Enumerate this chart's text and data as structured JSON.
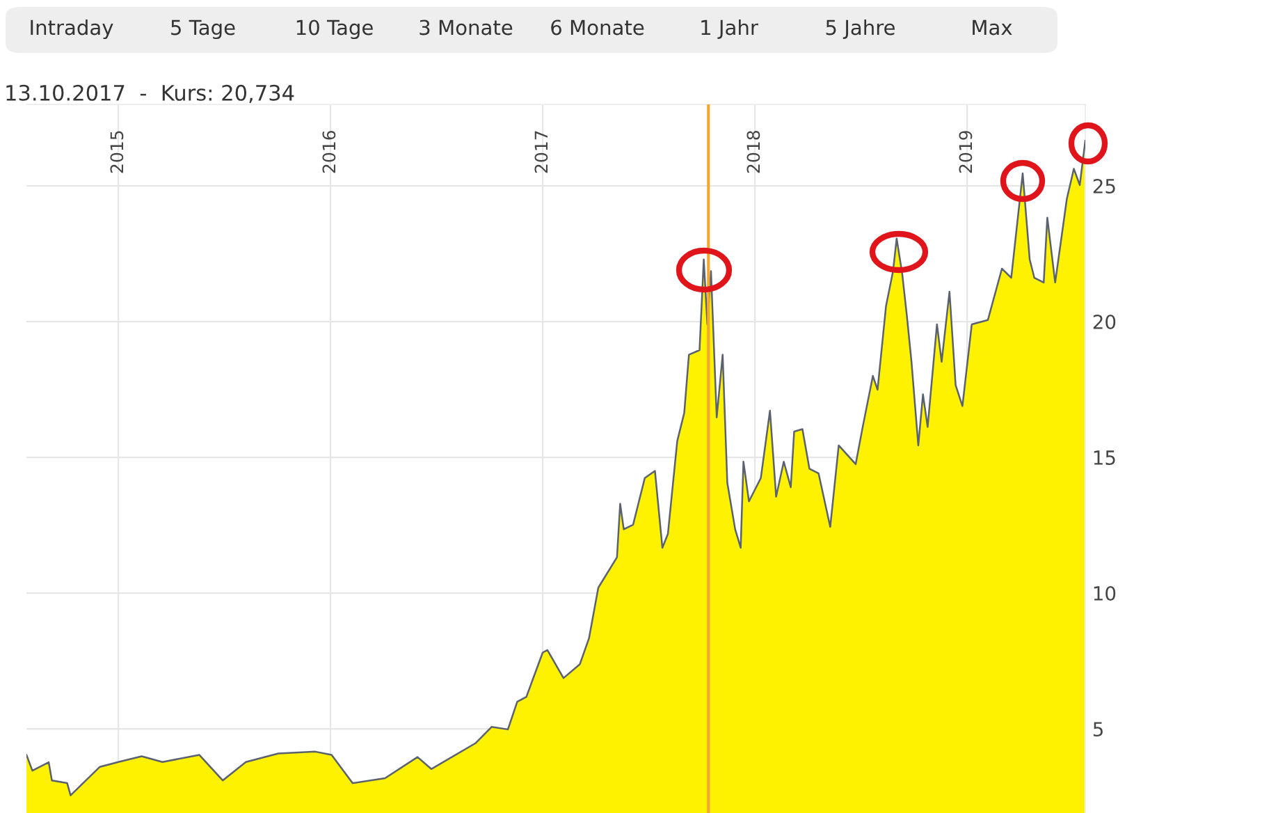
{
  "chart_data": {
    "type": "area",
    "annotations": [
      "13.10.2017  -  Kurs: 20,734",
      "Intraday",
      "5 Tage",
      "10 Tage",
      "3 Monate",
      "6 Monate",
      "1 Jahr",
      "5 Jahre",
      "Max"
    ],
    "ref_lines": [
      {
        "axis": "x",
        "value": 2017.781,
        "color": "#f0a830"
      }
    ],
    "series": [
      {
        "color": "#fff200",
        "x": [
          2014.567,
          2014.595,
          2014.672,
          2014.687,
          2014.759,
          2014.775,
          2014.913,
          2015.0,
          2015.11,
          2015.208,
          2015.382,
          2015.492,
          2015.601,
          2015.754,
          2015.929,
          2016.005,
          2016.104,
          2016.257,
          2016.41,
          2016.475,
          2016.683,
          2016.759,
          2016.836,
          2016.88,
          2016.923,
          2017.0,
          2017.022,
          2017.098,
          2017.175,
          2017.218,
          2017.262,
          2017.35,
          2017.365,
          2017.382,
          2017.426,
          2017.481,
          2017.529,
          2017.564,
          2017.59,
          2017.634,
          2017.667,
          2017.689,
          2017.739,
          2017.759,
          2017.776,
          2017.793,
          2017.82,
          2017.848,
          2017.87,
          2017.907,
          2017.933,
          2017.946,
          2017.972,
          2018.028,
          2018.071,
          2018.1,
          2018.136,
          2018.169,
          2018.185,
          2018.224,
          2018.257,
          2018.3,
          2018.355,
          2018.395,
          2018.475,
          2018.508,
          2018.556,
          2018.578,
          2018.618,
          2018.651,
          2018.668,
          2018.694,
          2018.716,
          2018.738,
          2018.77,
          2018.792,
          2018.814,
          2018.858,
          2018.88,
          2018.917,
          2018.946,
          2018.978,
          2019.022,
          2019.098,
          2019.164,
          2019.208,
          2019.262,
          2019.295,
          2019.317,
          2019.361,
          2019.378,
          2019.415,
          2019.47,
          2019.503,
          2019.531,
          2019.557
        ],
        "values": [
          4.04,
          3.46,
          3.77,
          3.1,
          3.0,
          2.55,
          3.6,
          3.78,
          3.99,
          3.78,
          4.04,
          3.1,
          3.78,
          4.09,
          4.16,
          4.04,
          3.0,
          3.18,
          3.96,
          3.52,
          4.47,
          5.07,
          4.98,
          6.0,
          6.18,
          7.81,
          7.9,
          6.87,
          7.38,
          8.33,
          10.2,
          11.32,
          13.29,
          12.35,
          12.52,
          14.24,
          14.5,
          11.67,
          12.18,
          15.6,
          16.64,
          18.78,
          18.95,
          22.29,
          19.9,
          21.86,
          16.47,
          18.78,
          14.06,
          12.35,
          11.67,
          14.84,
          13.38,
          14.24,
          16.72,
          13.55,
          14.84,
          13.9,
          15.95,
          16.04,
          14.58,
          14.41,
          12.44,
          15.44,
          14.75,
          16.12,
          18.0,
          17.49,
          20.58,
          21.86,
          23.06,
          21.78,
          20.23,
          18.52,
          15.44,
          17.32,
          16.12,
          19.9,
          18.52,
          21.1,
          17.66,
          16.89,
          19.9,
          20.06,
          21.95,
          21.61,
          25.46,
          22.29,
          21.61,
          21.44,
          23.83,
          21.44,
          24.52,
          25.63,
          25.03,
          26.66
        ]
      }
    ],
    "xlim": [
      2014.567,
      2019.557
    ],
    "xticks": [
      2015,
      2016,
      2017,
      2018,
      2019
    ],
    "ylim": [
      1.9,
      28.0
    ],
    "yticks": [
      5,
      10,
      15,
      20,
      25
    ],
    "grid": true
  }
}
